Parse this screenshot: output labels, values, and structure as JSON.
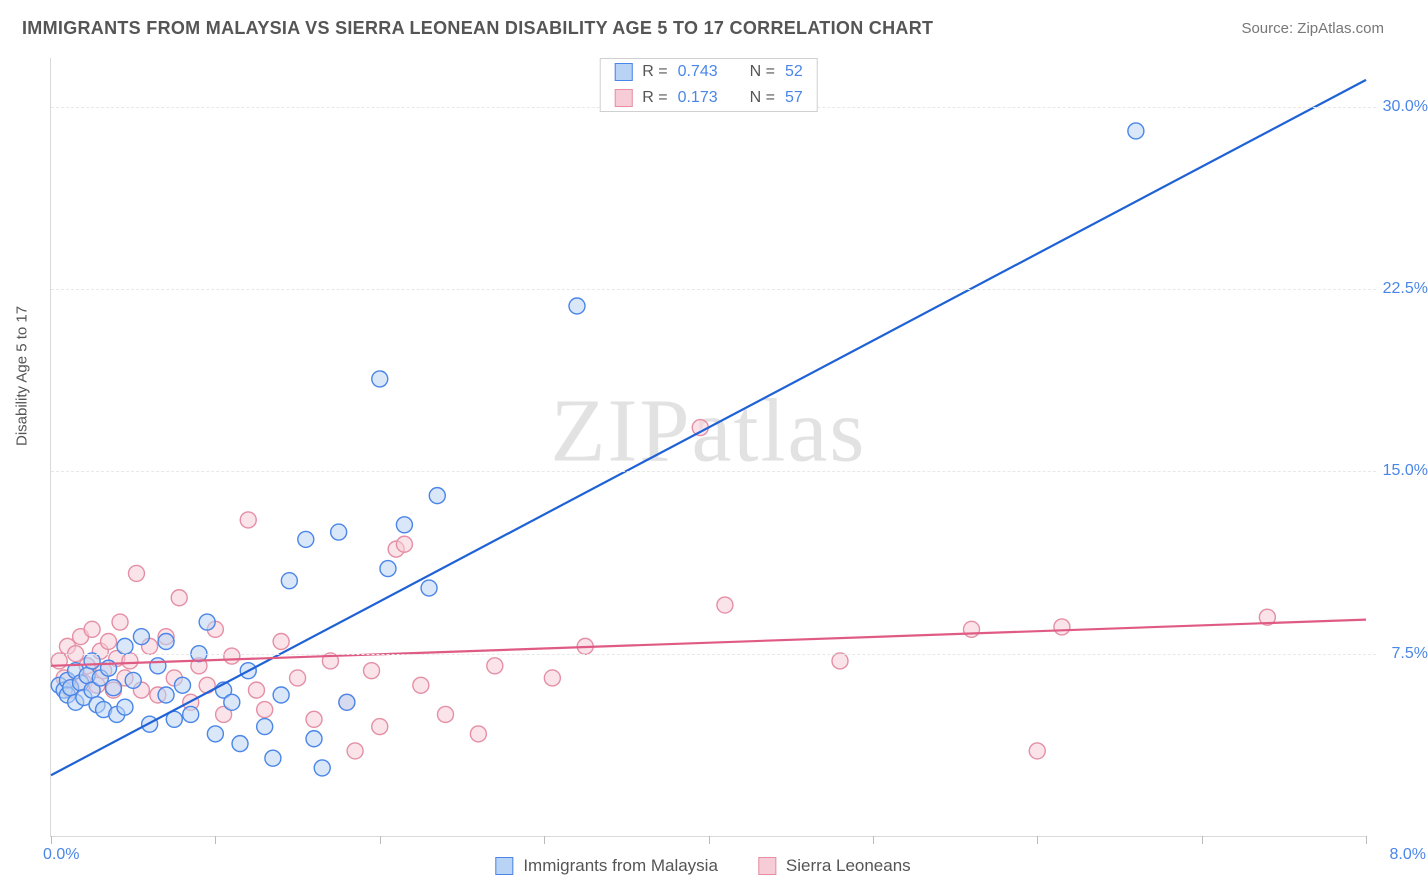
{
  "title": "IMMIGRANTS FROM MALAYSIA VS SIERRA LEONEAN DISABILITY AGE 5 TO 17 CORRELATION CHART",
  "source": "Source: ZipAtlas.com",
  "watermark": "ZIPatlas",
  "y_axis_title": "Disability Age 5 to 17",
  "chart": {
    "type": "scatter-correlation",
    "background_color": "#ffffff",
    "grid_color": "#e8e8e8",
    "axis_color": "#d9d9d9",
    "x_min": 0.0,
    "x_max": 8.0,
    "y_min": 0.0,
    "y_max": 32.0,
    "x_ticks": [
      0,
      1,
      2,
      3,
      4,
      5,
      6,
      7,
      8
    ],
    "y_ticks": [
      7.5,
      15.0,
      22.5,
      30.0
    ],
    "y_tick_labels": [
      "7.5%",
      "15.0%",
      "22.5%",
      "30.0%"
    ],
    "x_left_label": "0.0%",
    "x_right_label": "8.0%",
    "marker_radius": 8,
    "marker_opacity": 0.55,
    "line_width": 2.2
  },
  "series": [
    {
      "key": "malaysia",
      "label": "Immigrants from Malaysia",
      "fill": "#b9d3f4",
      "stroke": "#4a86e8",
      "line_color": "#1f62d6",
      "R": "0.743",
      "N": "52",
      "trend": {
        "x1": 0.0,
        "y1": 2.5,
        "x2": 8.0,
        "y2": 31.1
      },
      "points": [
        [
          0.05,
          6.2
        ],
        [
          0.08,
          6.0
        ],
        [
          0.1,
          6.4
        ],
        [
          0.1,
          5.8
        ],
        [
          0.12,
          6.1
        ],
        [
          0.15,
          6.8
        ],
        [
          0.15,
          5.5
        ],
        [
          0.18,
          6.3
        ],
        [
          0.2,
          5.7
        ],
        [
          0.22,
          6.6
        ],
        [
          0.25,
          6.0
        ],
        [
          0.25,
          7.2
        ],
        [
          0.28,
          5.4
        ],
        [
          0.3,
          6.5
        ],
        [
          0.32,
          5.2
        ],
        [
          0.35,
          6.9
        ],
        [
          0.38,
          6.1
        ],
        [
          0.4,
          5.0
        ],
        [
          0.45,
          7.8
        ],
        [
          0.45,
          5.3
        ],
        [
          0.5,
          6.4
        ],
        [
          0.55,
          8.2
        ],
        [
          0.6,
          4.6
        ],
        [
          0.65,
          7.0
        ],
        [
          0.7,
          8.0
        ],
        [
          0.7,
          5.8
        ],
        [
          0.75,
          4.8
        ],
        [
          0.8,
          6.2
        ],
        [
          0.85,
          5.0
        ],
        [
          0.9,
          7.5
        ],
        [
          0.95,
          8.8
        ],
        [
          1.0,
          4.2
        ],
        [
          1.05,
          6.0
        ],
        [
          1.1,
          5.5
        ],
        [
          1.15,
          3.8
        ],
        [
          1.2,
          6.8
        ],
        [
          1.3,
          4.5
        ],
        [
          1.35,
          3.2
        ],
        [
          1.4,
          5.8
        ],
        [
          1.45,
          10.5
        ],
        [
          1.55,
          12.2
        ],
        [
          1.6,
          4.0
        ],
        [
          1.65,
          2.8
        ],
        [
          1.75,
          12.5
        ],
        [
          1.8,
          5.5
        ],
        [
          2.0,
          18.8
        ],
        [
          2.05,
          11.0
        ],
        [
          2.15,
          12.8
        ],
        [
          2.3,
          10.2
        ],
        [
          2.35,
          14.0
        ],
        [
          3.2,
          21.8
        ],
        [
          6.6,
          29.0
        ]
      ]
    },
    {
      "key": "sierra",
      "label": "Sierra Leoneans",
      "fill": "#f6cdd7",
      "stroke": "#e58fa5",
      "line_color": "#e05b84",
      "R": "0.173",
      "N": "57",
      "trend": {
        "x1": 0.0,
        "y1": 7.0,
        "x2": 8.0,
        "y2": 8.9
      },
      "points": [
        [
          0.05,
          7.2
        ],
        [
          0.08,
          6.5
        ],
        [
          0.1,
          7.8
        ],
        [
          0.12,
          6.0
        ],
        [
          0.15,
          7.5
        ],
        [
          0.18,
          8.2
        ],
        [
          0.2,
          6.3
        ],
        [
          0.22,
          7.0
        ],
        [
          0.25,
          8.5
        ],
        [
          0.28,
          6.2
        ],
        [
          0.3,
          7.6
        ],
        [
          0.32,
          6.8
        ],
        [
          0.35,
          8.0
        ],
        [
          0.38,
          6.0
        ],
        [
          0.4,
          7.3
        ],
        [
          0.42,
          8.8
        ],
        [
          0.45,
          6.5
        ],
        [
          0.48,
          7.2
        ],
        [
          0.52,
          10.8
        ],
        [
          0.55,
          6.0
        ],
        [
          0.6,
          7.8
        ],
        [
          0.65,
          5.8
        ],
        [
          0.7,
          8.2
        ],
        [
          0.75,
          6.5
        ],
        [
          0.78,
          9.8
        ],
        [
          0.85,
          5.5
        ],
        [
          0.9,
          7.0
        ],
        [
          0.95,
          6.2
        ],
        [
          1.0,
          8.5
        ],
        [
          1.05,
          5.0
        ],
        [
          1.1,
          7.4
        ],
        [
          1.2,
          13.0
        ],
        [
          1.25,
          6.0
        ],
        [
          1.3,
          5.2
        ],
        [
          1.4,
          8.0
        ],
        [
          1.5,
          6.5
        ],
        [
          1.6,
          4.8
        ],
        [
          1.7,
          7.2
        ],
        [
          1.8,
          5.5
        ],
        [
          1.85,
          3.5
        ],
        [
          1.95,
          6.8
        ],
        [
          2.0,
          4.5
        ],
        [
          2.1,
          11.8
        ],
        [
          2.15,
          12.0
        ],
        [
          2.25,
          6.2
        ],
        [
          2.4,
          5.0
        ],
        [
          2.6,
          4.2
        ],
        [
          2.7,
          7.0
        ],
        [
          3.05,
          6.5
        ],
        [
          3.25,
          7.8
        ],
        [
          3.95,
          16.8
        ],
        [
          4.1,
          9.5
        ],
        [
          4.8,
          7.2
        ],
        [
          5.6,
          8.5
        ],
        [
          6.0,
          3.5
        ],
        [
          6.15,
          8.6
        ],
        [
          7.4,
          9.0
        ]
      ]
    }
  ],
  "legend_top": {
    "R_label": "R =",
    "N_label": "N ="
  }
}
